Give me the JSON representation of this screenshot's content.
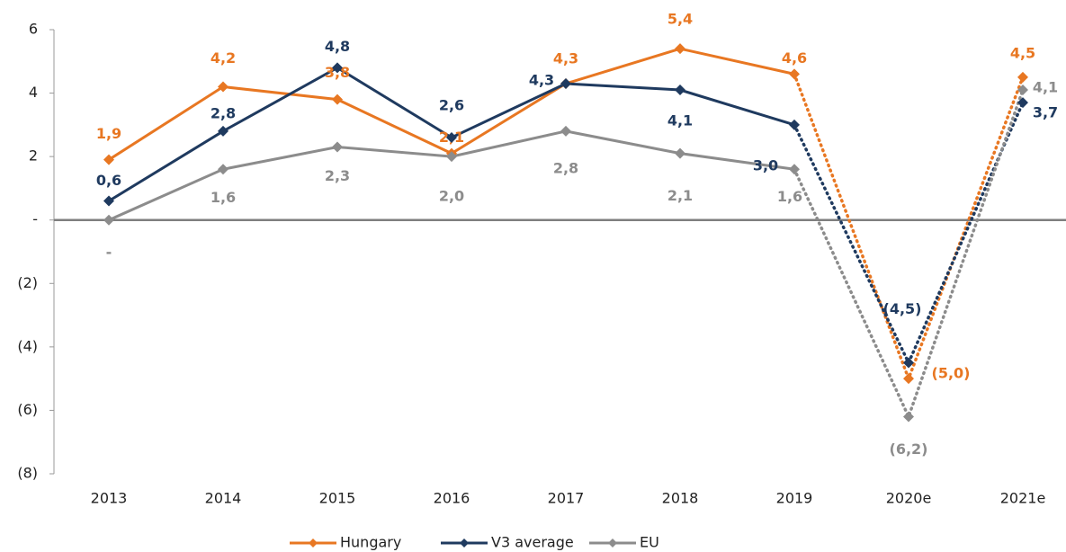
{
  "chart_data": {
    "type": "line",
    "categories": [
      "2013",
      "2014",
      "2015",
      "2016",
      "2017",
      "2018",
      "2019",
      "2020e",
      "2021e"
    ],
    "series": [
      {
        "name": "Hungary",
        "color": "#e87722",
        "values": [
          1.9,
          4.2,
          3.8,
          2.1,
          4.3,
          5.4,
          4.6,
          -5.0,
          4.5
        ],
        "value_labels": [
          "1,9",
          "4,2",
          "3,8",
          "2,1",
          "4,3",
          "5,4",
          "4,6",
          "(5,0)",
          "4,5"
        ]
      },
      {
        "name": "V3 average",
        "color": "#1f3a5f",
        "values": [
          0.6,
          2.8,
          4.8,
          2.6,
          4.3,
          4.1,
          3.0,
          -4.5,
          3.7
        ],
        "value_labels": [
          "0,6",
          "2,8",
          "4,8",
          "2,6",
          "4,3",
          "4,1",
          "3,0",
          "(4,5)",
          "3,7"
        ]
      },
      {
        "name": "EU",
        "color": "#8c8c8c",
        "values": [
          0,
          1.6,
          2.3,
          2.0,
          2.8,
          2.1,
          1.6,
          -6.2,
          4.1
        ],
        "value_labels": [
          "-",
          "1,6",
          "2,3",
          "2,0",
          "2,8",
          "2,1",
          "1,6",
          "(6,2)",
          "4,1"
        ]
      }
    ],
    "ylim": [
      -8,
      6
    ],
    "yticks": [
      6,
      4,
      2,
      {
        "value": 0,
        "label": "-"
      },
      {
        "value": -2,
        "label": "(2)"
      },
      {
        "value": -4,
        "label": "(4)"
      },
      {
        "value": -6,
        "label": "(6)"
      },
      {
        "value": -8,
        "label": "(8)"
      }
    ],
    "dotted_from_index": 6,
    "legend": "bottom"
  }
}
